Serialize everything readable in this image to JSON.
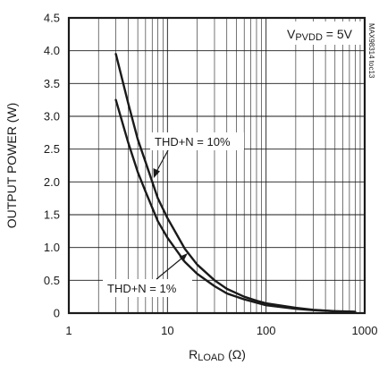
{
  "chart_data": {
    "type": "line",
    "x_scale": "log",
    "xlim": [
      1,
      1000
    ],
    "ylim": [
      0,
      4.5
    ],
    "grid": true,
    "xlabel": {
      "main": "R",
      "sub": "LOAD",
      "unit": " (Ω)"
    },
    "ylabel": "OUTPUT POWER (W)",
    "x_ticks": [
      1,
      10,
      100,
      1000
    ],
    "x_tick_labels": [
      "1",
      "10",
      "100",
      "1000"
    ],
    "y_ticks": [
      0,
      0.5,
      1.0,
      1.5,
      2.0,
      2.5,
      3.0,
      3.5,
      4.0,
      4.5
    ],
    "y_tick_labels": [
      "0",
      "0.5",
      "1.0",
      "1.5",
      "2.0",
      "2.5",
      "3.0",
      "3.5",
      "4.0",
      "4.5"
    ],
    "condition": {
      "main": "V",
      "sub": "PVDD",
      "rest": " = 5V"
    },
    "figure_id": "MAX98314 toc13",
    "series": [
      {
        "name": "THD+N = 10%",
        "x": [
          3,
          4,
          5,
          6,
          8,
          10,
          15,
          20,
          30,
          40,
          60,
          80,
          100,
          200,
          300,
          500,
          800
        ],
        "y": [
          3.95,
          3.2,
          2.65,
          2.3,
          1.75,
          1.45,
          0.98,
          0.74,
          0.5,
          0.37,
          0.25,
          0.19,
          0.15,
          0.08,
          0.05,
          0.03,
          0.02
        ]
      },
      {
        "name": "THD+N = 1%",
        "x": [
          3,
          4,
          5,
          6,
          8,
          10,
          15,
          20,
          30,
          40,
          60,
          80,
          100,
          200,
          300,
          500,
          800
        ],
        "y": [
          3.25,
          2.6,
          2.15,
          1.85,
          1.4,
          1.15,
          0.78,
          0.6,
          0.41,
          0.3,
          0.21,
          0.16,
          0.12,
          0.065,
          0.045,
          0.028,
          0.018
        ]
      }
    ],
    "annotations": [
      {
        "text": "THD+N = 10%",
        "x_val": 6.5,
        "y_val": 2.0
      },
      {
        "text": "THD+N = 1%",
        "x_val": 11,
        "y_val": 0.95
      }
    ]
  }
}
